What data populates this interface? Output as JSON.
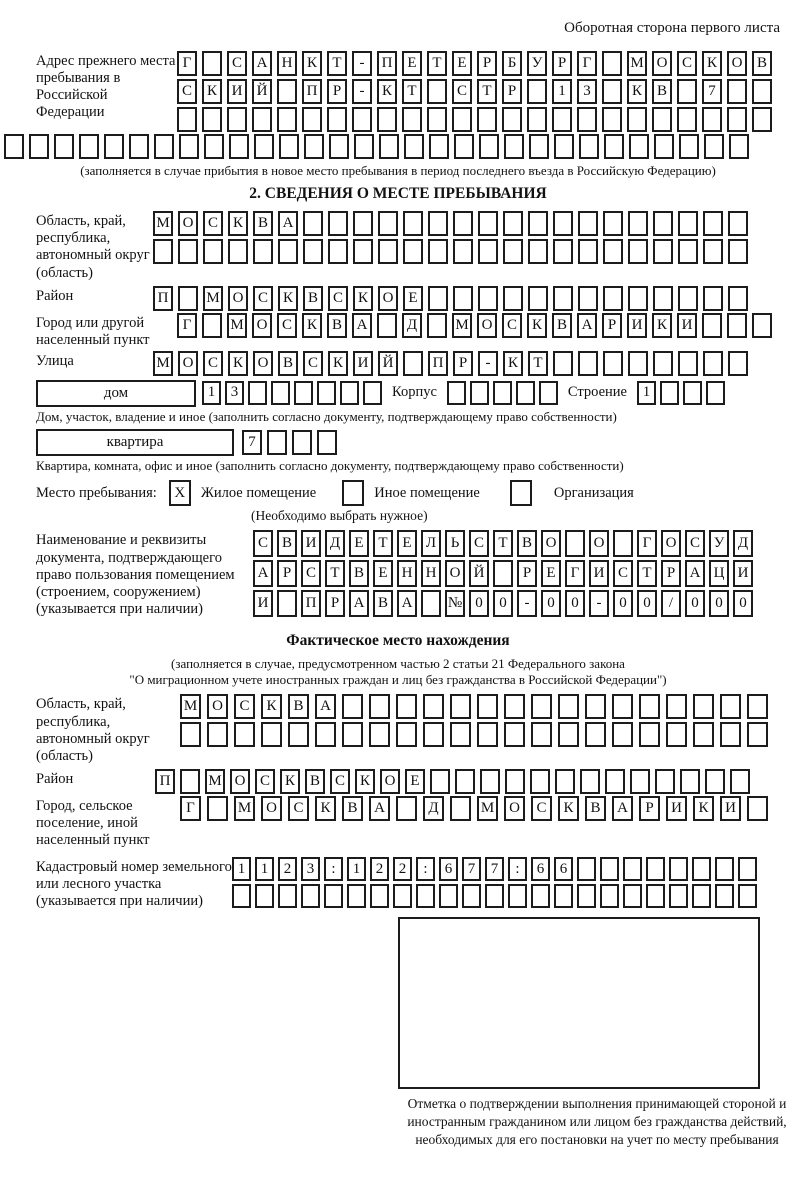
{
  "page": {
    "side_note": "Оборотная сторона первого листа"
  },
  "prev_address": {
    "label": "Адрес прежнего места пребывания в Российской Федерации",
    "rows": [
      "Г САНКТ-ПЕТЕРБУРГ МОСКОВ",
      "СКИЙ ПР-КТ СТР 13 КВ 7  ",
      "                        "
    ],
    "full_row": "                              ",
    "caption": "(заполняется в случае прибытия в новое место пребывания в период последнего въезда в Российскую Федерацию)"
  },
  "section2": {
    "title": "2. СВЕДЕНИЯ О МЕСТЕ ПРЕБЫВАНИЯ",
    "region": {
      "label": "Область, край, республика, автономный округ (область)",
      "rows": [
        "МОСКВА                  ",
        "                        "
      ]
    },
    "district": {
      "label": "Район",
      "row": "П МОСКВСКОЕ             "
    },
    "city": {
      "label": "Город или другой населенный пункт",
      "row": "Г МОСКВА Д МОСКВАРИКИ   "
    },
    "street": {
      "label": "Улица",
      "row": "МОСКОВСКИЙ ПР-КТ        "
    },
    "house": {
      "box_label": "дом",
      "row": "13      ",
      "korpus_label": "Корпус",
      "korpus_row": "     ",
      "stroenie_label": "Строение",
      "stroenie_row": "1   "
    },
    "house_caption": "Дом, участок, владение и иное (заполнить согласно документу, подтверждающему право собственности)",
    "apartment": {
      "box_label": "квартира",
      "row": "7   "
    },
    "apartment_caption": "Квартира, комната, офис и иное (заполнить согласно документу, подтверждающему право собственности)",
    "stay": {
      "label": "Место пребывания:",
      "options": [
        {
          "box": "X",
          "label": "Жилое помещение"
        },
        {
          "box": "",
          "label": "Иное помещение"
        },
        {
          "box": "",
          "label": "Организация"
        }
      ],
      "note": "(Необходимо выбрать нужное)"
    },
    "document": {
      "label": "Наименование и реквизиты документа, подтверждающего право пользования помещением (строением, сооружением) (указывается при наличии)",
      "rows": [
        "СВИДЕТЕЛЬСТВО О ГОСУД",
        "АРСТВЕННОЙ РЕГИСТРАЦИ",
        "И ПРАВА №00-00-00/000"
      ]
    }
  },
  "actual_location": {
    "title": "Фактическое место нахождения",
    "caption_line1": "(заполняется в случае, предусмотренном частью 2 статьи 21 Федерального закона",
    "caption_line2": "\"О миграционном учете иностранных граждан и лиц без гражданства в Российской Федерации\")",
    "region": {
      "label": "Область, край, республика, автономный округ (область)",
      "rows": [
        "МОСКВА                ",
        "                      "
      ]
    },
    "district": {
      "label": "Район",
      "row": "П МОСКВСКОЕ             "
    },
    "city": {
      "label": "Город, сельское поселение, иной населенный пункт",
      "row": "Г МОСКВА Д МОСКВАРИКИ "
    },
    "cadastral": {
      "label": "Кадастровый номер земельного или лесного участка (указывается при наличии)",
      "rows": [
        "1123:122:677:66        ",
        "                       "
      ]
    },
    "stamp_caption": "Отметка о подтверждении выполнения принимающей стороной и иностранным гражданином или лицом без гражданства действий, необходимых для его постановки на учет по месту пребывания"
  }
}
